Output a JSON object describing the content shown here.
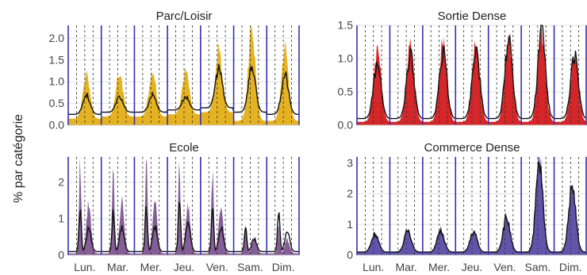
{
  "figure": {
    "ylabel": "% par catégorie",
    "day_labels": [
      "Lun.",
      "Mar.",
      "Mer.",
      "Jeu.",
      "Ven.",
      "Sam.",
      "Dim."
    ]
  },
  "chart_data": [
    {
      "type": "area",
      "title": "Parc/Loisir",
      "color": "#E3AE16",
      "ylim": [
        0,
        2.3
      ],
      "yticks": [
        0.0,
        0.5,
        1.0,
        1.5,
        2.0
      ],
      "ytick_labels": [
        "0.0",
        "0.5",
        "1.0",
        "1.5",
        "2.0"
      ],
      "x_categories": [
        "Lun.",
        "Mar.",
        "Mer.",
        "Jeu.",
        "Ven.",
        "Sam.",
        "Dim."
      ],
      "day_peak_area": [
        1.2,
        1.2,
        1.3,
        1.25,
        1.7,
        2.25,
        1.8
      ],
      "day_peak_line": [
        0.7,
        0.65,
        0.7,
        0.65,
        1.3,
        1.35,
        1.15
      ],
      "day_base_area": [
        0.15,
        0.2,
        0.2,
        0.25,
        0.3,
        0.1,
        0.1
      ],
      "day_base_line": [
        0.25,
        0.3,
        0.3,
        0.35,
        0.4,
        0.3,
        0.25
      ],
      "grid": true
    },
    {
      "type": "area",
      "title": "Sortie Dense",
      "color": "#D31A1E",
      "ylim": [
        0,
        1.5
      ],
      "yticks": [
        0.0,
        0.5,
        1.0,
        1.5
      ],
      "ytick_labels": [
        "0.0",
        "0.5",
        "1.0",
        "1.5"
      ],
      "x_categories": [
        "Lun.",
        "Mar.",
        "Mer.",
        "Jeu.",
        "Ven.",
        "Sam.",
        "Dim."
      ],
      "day_peak_area": [
        1.15,
        1.2,
        1.25,
        1.25,
        1.3,
        1.4,
        1.1
      ],
      "day_peak_line": [
        0.95,
        1.05,
        1.1,
        1.15,
        1.3,
        1.45,
        1.05
      ],
      "day_base_area": [
        0.05,
        0.05,
        0.05,
        0.05,
        0.05,
        0.05,
        0.05
      ],
      "day_base_line": [
        0.1,
        0.1,
        0.1,
        0.1,
        0.1,
        0.1,
        0.1
      ],
      "grid": true
    },
    {
      "type": "area",
      "title": "Ecole",
      "color": "#7E5491",
      "ylim": [
        0,
        2.7
      ],
      "yticks": [
        0,
        1,
        2
      ],
      "ytick_labels": [
        "0",
        "1",
        "2"
      ],
      "x_categories": [
        "Lun.",
        "Mar.",
        "Mer.",
        "Jeu.",
        "Ven.",
        "Sam.",
        "Dim."
      ],
      "day_peak_area": [
        2.55,
        2.6,
        2.6,
        2.4,
        2.3,
        0.8,
        0.75
      ],
      "day_peak_line": [
        1.25,
        1.25,
        1.35,
        1.5,
        1.3,
        0.75,
        1.15
      ],
      "day_base_area": [
        0.05,
        0.05,
        0.05,
        0.05,
        0.05,
        0.05,
        0.05
      ],
      "day_base_line": [
        0.1,
        0.1,
        0.1,
        0.1,
        0.1,
        0.1,
        0.1
      ],
      "grid": true
    },
    {
      "type": "area",
      "title": "Commerce Dense",
      "color": "#5B4BA6",
      "ylim": [
        0,
        3.2
      ],
      "yticks": [
        0,
        1,
        2,
        3
      ],
      "ytick_labels": [
        "0",
        "1",
        "2",
        "3"
      ],
      "x_categories": [
        "Lun.",
        "Mar.",
        "Mer.",
        "Jeu.",
        "Ven.",
        "Sam.",
        "Dim."
      ],
      "day_peak_area": [
        0.75,
        0.85,
        0.9,
        0.8,
        1.3,
        3.25,
        2.3
      ],
      "day_peak_line": [
        0.7,
        0.8,
        0.8,
        0.75,
        1.2,
        2.95,
        2.25
      ],
      "day_base_area": [
        0.1,
        0.1,
        0.1,
        0.1,
        0.1,
        0.1,
        0.1
      ],
      "day_base_line": [
        0.1,
        0.1,
        0.1,
        0.1,
        0.1,
        0.1,
        0.1
      ],
      "grid": true
    }
  ]
}
